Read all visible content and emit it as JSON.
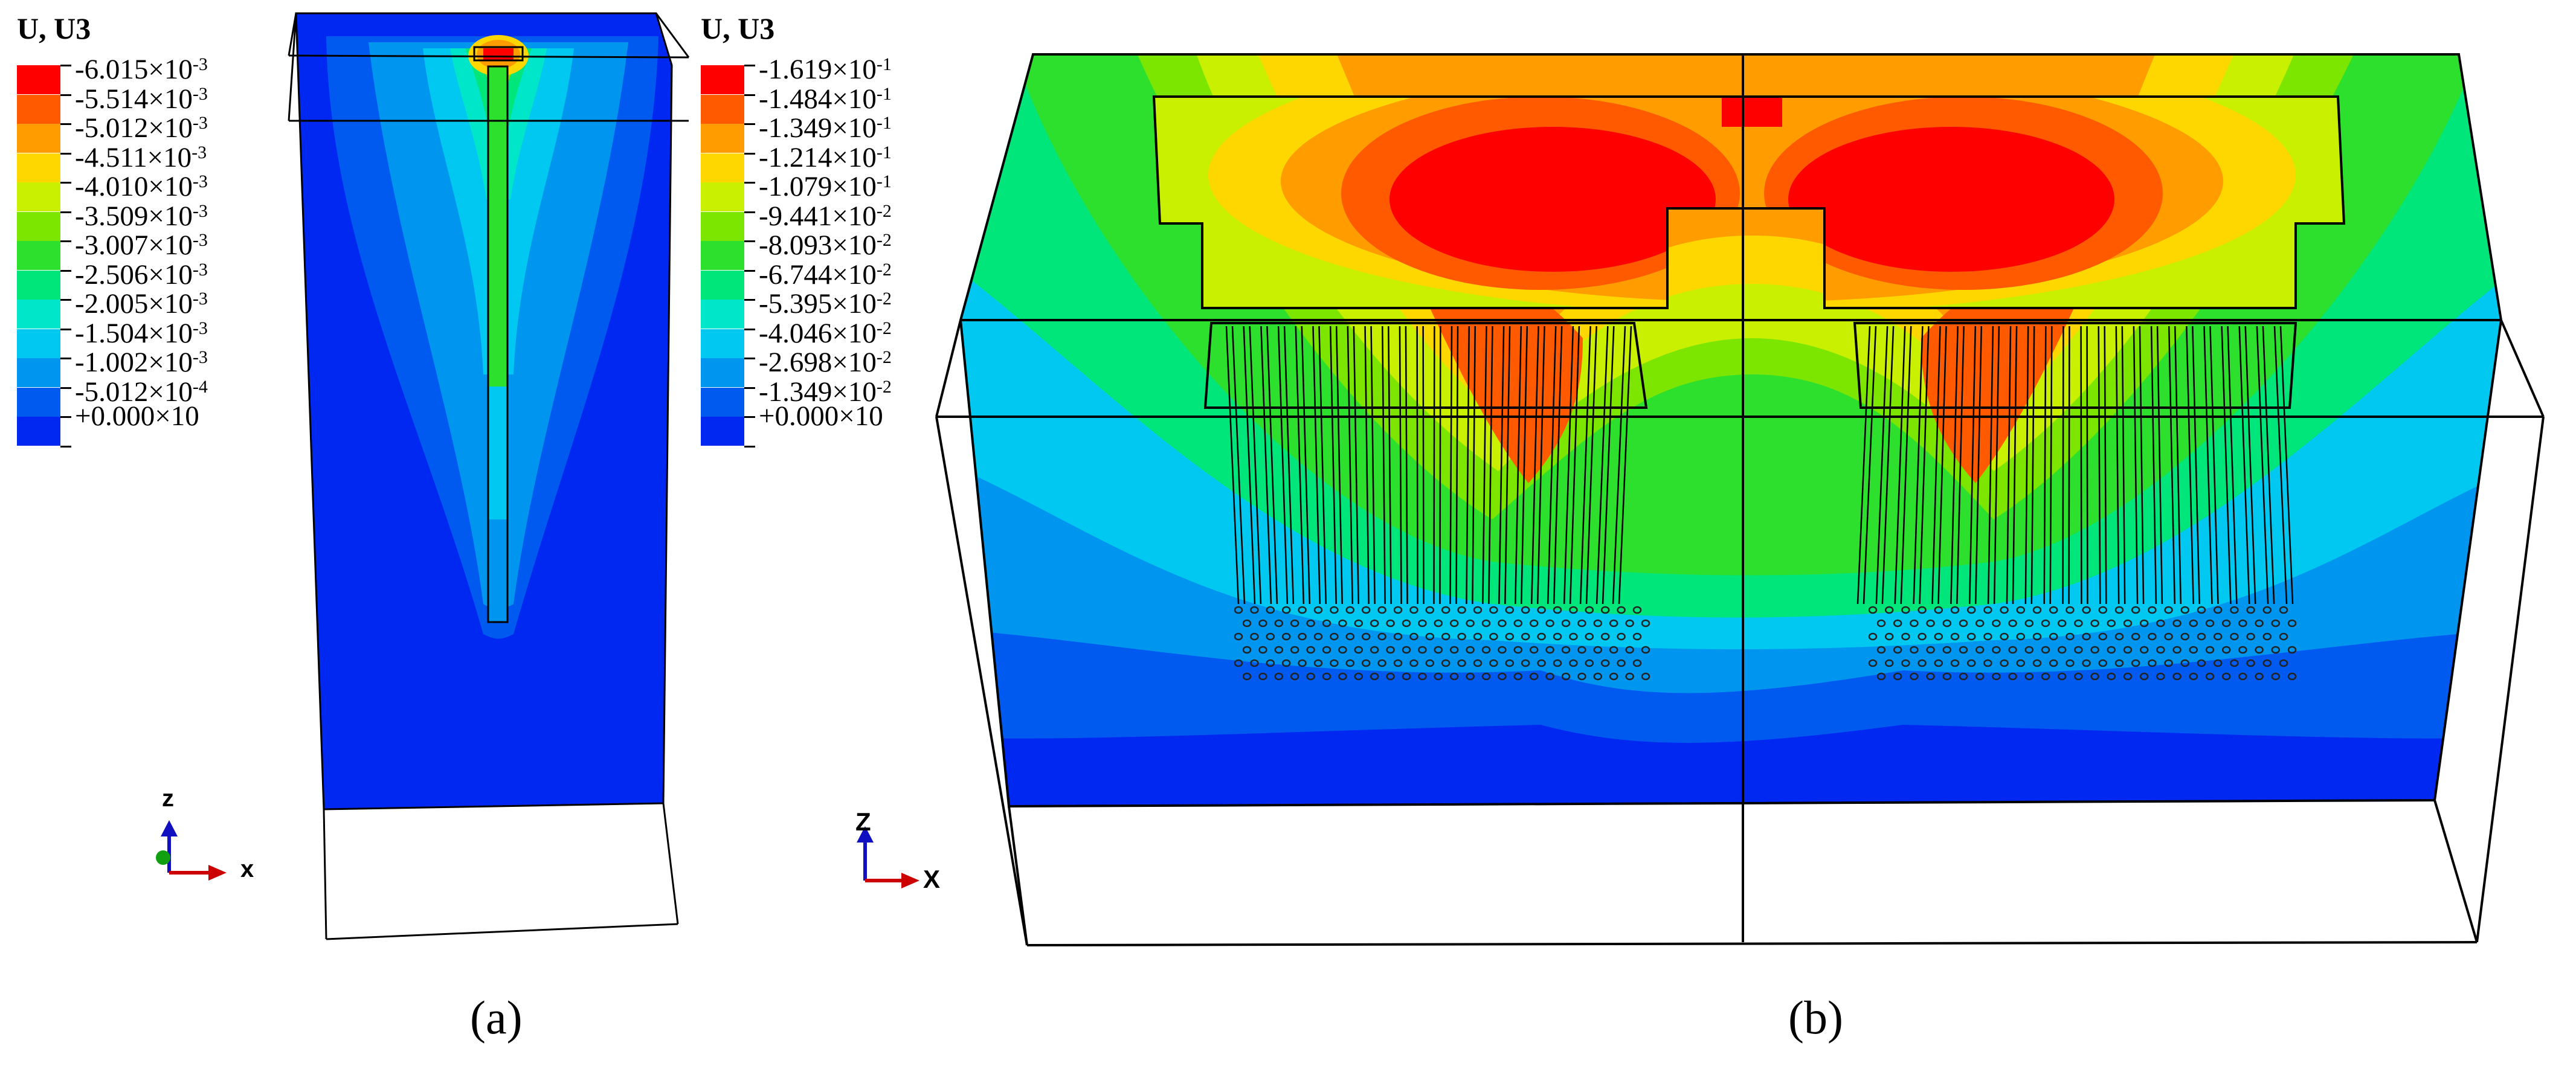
{
  "panel_a": {
    "legend": {
      "title": "U, U3",
      "entries": [
        {
          "mantissa": "-6.015×10",
          "exp": "-3",
          "color": "#ff0000"
        },
        {
          "mantissa": "-5.514×10",
          "exp": "-3",
          "color": "#ff5a00"
        },
        {
          "mantissa": "-5.012×10",
          "exp": "-3",
          "color": "#ff9c00"
        },
        {
          "mantissa": "-4.511×10",
          "exp": "-3",
          "color": "#ffd700"
        },
        {
          "mantissa": "-4.010×10",
          "exp": "-3",
          "color": "#c8f000"
        },
        {
          "mantissa": "-3.509×10",
          "exp": "-3",
          "color": "#7de600"
        },
        {
          "mantissa": "-3.007×10",
          "exp": "-3",
          "color": "#2ee02e"
        },
        {
          "mantissa": "-2.506×10",
          "exp": "-3",
          "color": "#00e67a"
        },
        {
          "mantissa": "-2.005×10",
          "exp": "-3",
          "color": "#00e6c8"
        },
        {
          "mantissa": "-1.504×10",
          "exp": "-3",
          "color": "#00c8f0"
        },
        {
          "mantissa": "-1.002×10",
          "exp": "-3",
          "color": "#0096f0"
        },
        {
          "mantissa": "-5.012×10",
          "exp": "-4",
          "color": "#005af0"
        },
        {
          "mantissa": "+0.000×10",
          "exp": "",
          "color": "#0028f0"
        }
      ]
    },
    "axes": {
      "z": "z",
      "x": "x"
    },
    "caption": "(a)"
  },
  "panel_b": {
    "legend": {
      "title": "U, U3",
      "entries": [
        {
          "mantissa": "-1.619×10",
          "exp": "-1",
          "color": "#ff0000"
        },
        {
          "mantissa": "-1.484×10",
          "exp": "-1",
          "color": "#ff5a00"
        },
        {
          "mantissa": "-1.349×10",
          "exp": "-1",
          "color": "#ff9c00"
        },
        {
          "mantissa": "-1.214×10",
          "exp": "-1",
          "color": "#ffd700"
        },
        {
          "mantissa": "-1.079×10",
          "exp": "-1",
          "color": "#c8f000"
        },
        {
          "mantissa": "-9.441×10",
          "exp": "-2",
          "color": "#7de600"
        },
        {
          "mantissa": "-8.093×10",
          "exp": "-2",
          "color": "#2ee02e"
        },
        {
          "mantissa": "-6.744×10",
          "exp": "-2",
          "color": "#00e67a"
        },
        {
          "mantissa": "-5.395×10",
          "exp": "-2",
          "color": "#00e6c8"
        },
        {
          "mantissa": "-4.046×10",
          "exp": "-2",
          "color": "#00c8f0"
        },
        {
          "mantissa": "-2.698×10",
          "exp": "-2",
          "color": "#0096f0"
        },
        {
          "mantissa": "-1.349×10",
          "exp": "-2",
          "color": "#005af0"
        },
        {
          "mantissa": "+0.000×10",
          "exp": "",
          "color": "#0028f0"
        }
      ]
    },
    "axes": {
      "z": "Z",
      "x": "X"
    },
    "caption": "(b)"
  }
}
